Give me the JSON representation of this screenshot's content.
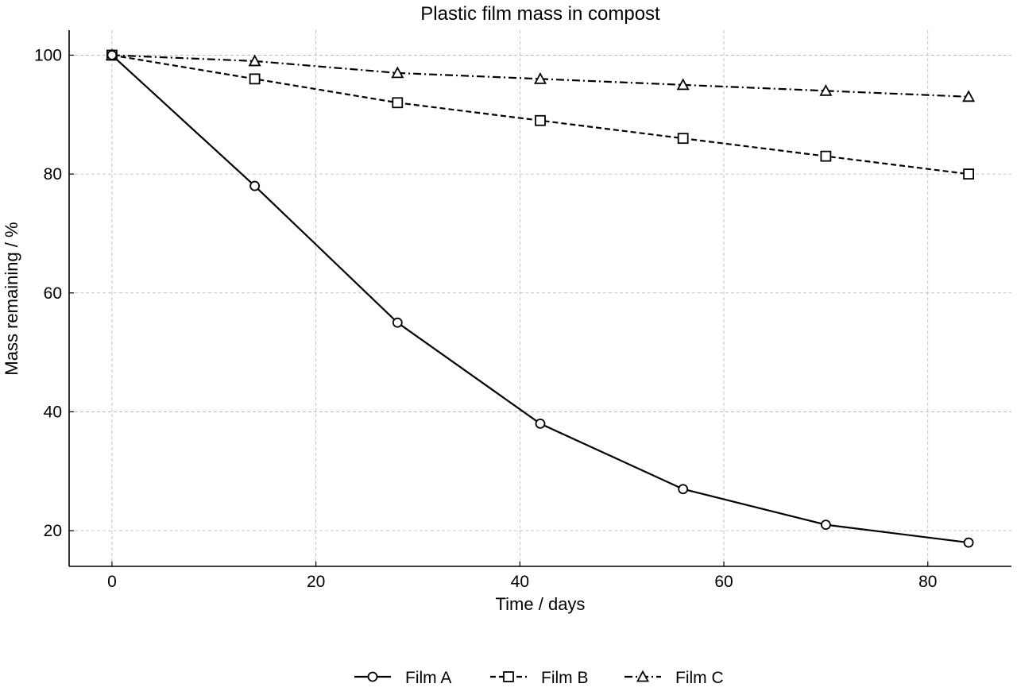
{
  "chart_data": {
    "type": "line",
    "title": "Plastic film mass in compost",
    "xlabel": "Time / days",
    "ylabel": "Mass remaining / %",
    "xlim": [
      -4.2,
      88.2
    ],
    "ylim": [
      14.0,
      104.2
    ],
    "xticks": [
      0,
      20,
      40,
      60,
      80
    ],
    "yticks": [
      20,
      40,
      60,
      80,
      100
    ],
    "grid": true,
    "legend_position": "bottom-center",
    "x": [
      0,
      14,
      28,
      42,
      56,
      70,
      84
    ],
    "series": [
      {
        "name": "Film A",
        "values": [
          100,
          78,
          55,
          38,
          27,
          21,
          18
        ],
        "line_style": "solid",
        "marker": "circle",
        "color": "#000000"
      },
      {
        "name": "Film B",
        "values": [
          100,
          96,
          92,
          89,
          86,
          83,
          80
        ],
        "line_style": "dashed",
        "marker": "square",
        "color": "#000000"
      },
      {
        "name": "Film C",
        "values": [
          100,
          99,
          97,
          96,
          95,
          94,
          93
        ],
        "line_style": "dash-dot",
        "marker": "triangle",
        "color": "#000000"
      }
    ]
  }
}
